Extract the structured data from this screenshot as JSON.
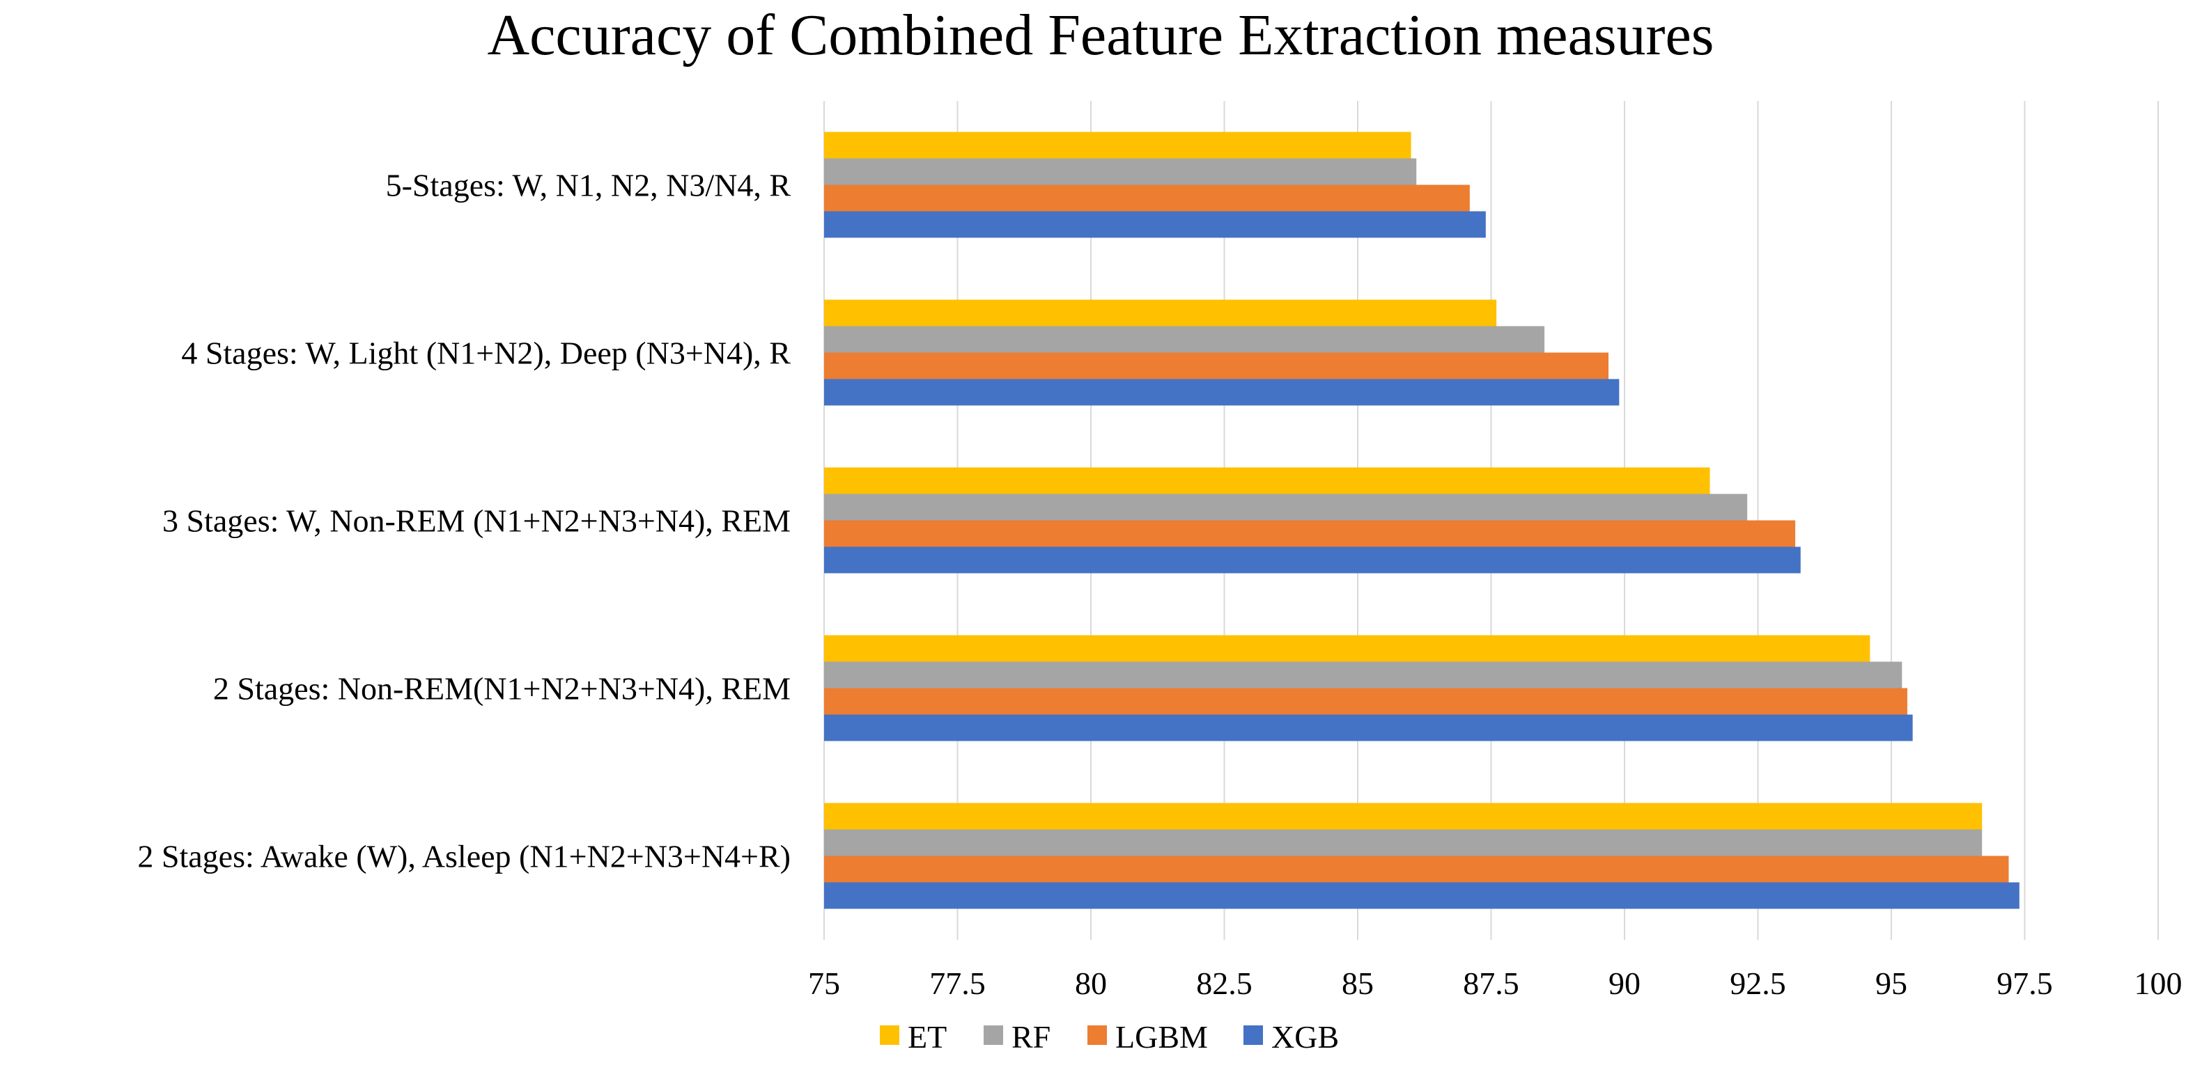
{
  "chart_data": {
    "type": "bar",
    "orientation": "horizontal",
    "title": "Accuracy of Combined Feature Extraction measures",
    "xlabel": "",
    "ylabel": "",
    "xlim": [
      75,
      100
    ],
    "ticks": [
      "75",
      "77.5",
      "80",
      "82.5",
      "85",
      "87.5",
      "90",
      "92.5",
      "95",
      "97.5",
      "100"
    ],
    "tick_values": [
      75,
      77.5,
      80,
      82.5,
      85,
      87.5,
      90,
      92.5,
      95,
      97.5,
      100
    ],
    "grid": true,
    "legend_position": "bottom",
    "categories": [
      "5-Stages: W, N1, N2, N3/N4, R",
      "4 Stages: W, Light (N1+N2), Deep (N3+N4), R",
      "3 Stages: W, Non-REM (N1+N2+N3+N4), REM",
      "2 Stages: Non-REM(N1+N2+N3+N4), REM",
      "2 Stages: Awake (W), Asleep (N1+N2+N3+N4+R)"
    ],
    "series": [
      {
        "name": "ET",
        "color": "#FFC000",
        "values": [
          86.0,
          87.6,
          91.6,
          94.6,
          96.7
        ]
      },
      {
        "name": "RF",
        "color": "#A5A5A5",
        "values": [
          86.1,
          88.5,
          92.3,
          95.2,
          96.7
        ]
      },
      {
        "name": "LGBM",
        "color": "#ED7D31",
        "values": [
          87.1,
          89.7,
          93.2,
          95.3,
          97.2
        ]
      },
      {
        "name": "XGB",
        "color": "#4472C4",
        "values": [
          87.4,
          89.9,
          93.3,
          95.4,
          97.4
        ]
      }
    ]
  }
}
